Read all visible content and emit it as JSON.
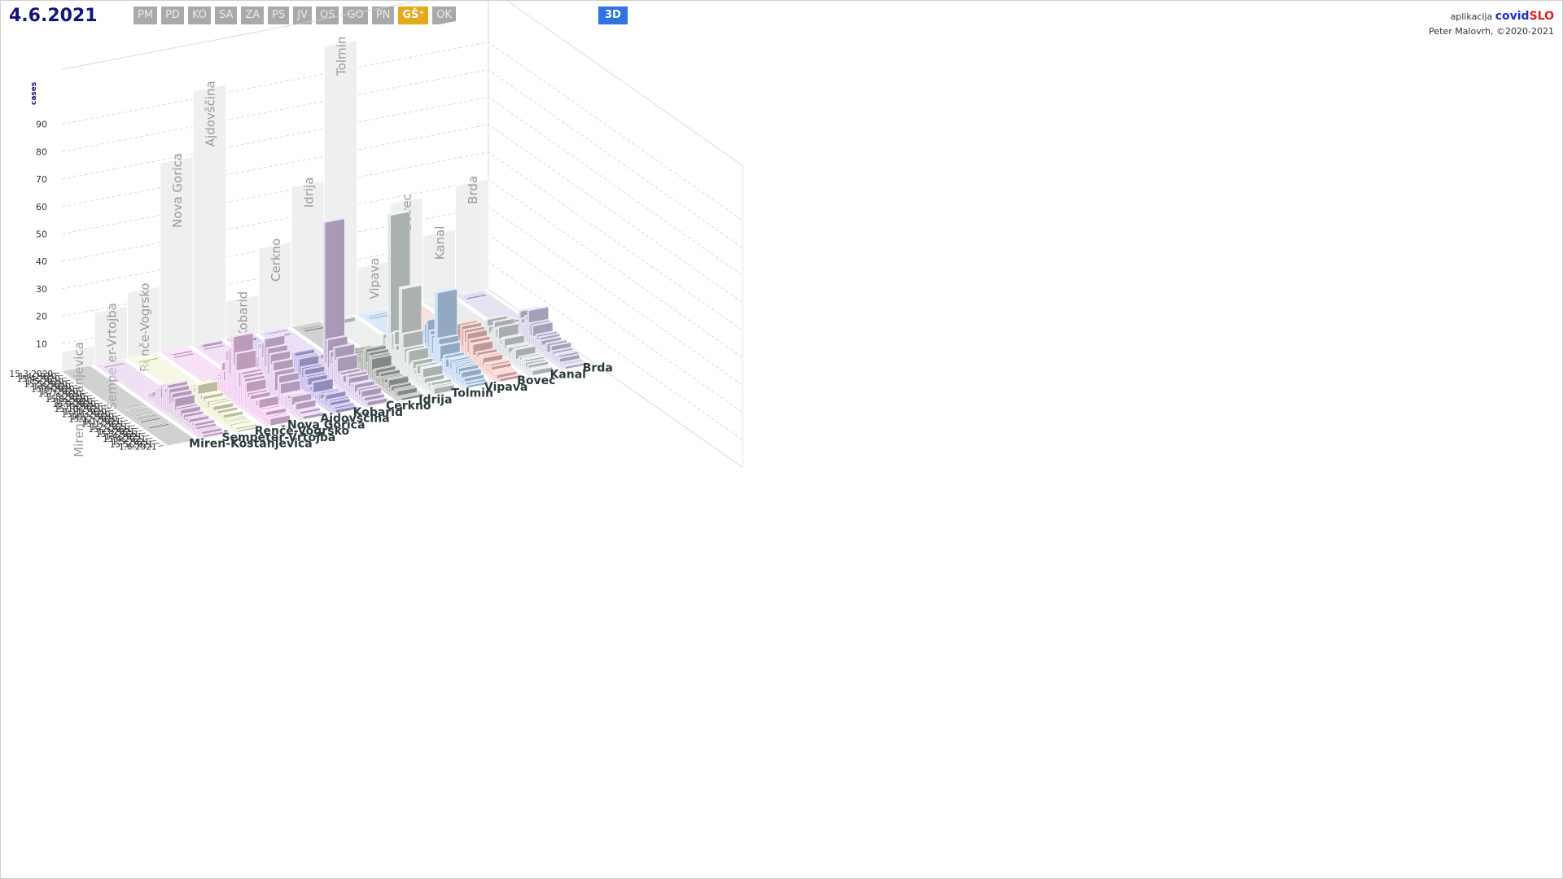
{
  "header": {
    "date": "4.6.2021",
    "tabs": [
      {
        "label": "PM",
        "active": false
      },
      {
        "label": "PD",
        "active": false
      },
      {
        "label": "KO",
        "active": false
      },
      {
        "label": "SA",
        "active": false
      },
      {
        "label": "ZA",
        "active": false
      },
      {
        "label": "PS",
        "active": false
      },
      {
        "label": "JV",
        "active": false
      },
      {
        "label": "OS",
        "active": false
      },
      {
        "label": "GO",
        "active": false
      },
      {
        "label": "PN",
        "active": false
      },
      {
        "label": "GŠ⁺",
        "active": true
      },
      {
        "label": "OK",
        "active": false
      }
    ],
    "view_button": "3D"
  },
  "brand": {
    "line1_prefix": "aplikacija",
    "covid": "covid",
    "slo": "SLO",
    "line2": "Peter Malovrh, ©2020-2021"
  },
  "chart_data": {
    "type": "bar",
    "view": "3d",
    "ylabel": "cases",
    "yticks": [
      10,
      20,
      30,
      40,
      50,
      60,
      70,
      80,
      90
    ],
    "date_ticks": [
      "15.3.2020",
      "1.4.2020",
      "15.4.2020",
      "1.5.2020",
      "15.5.2020",
      "1.6.2020",
      "15.6.2020",
      "1.7.2020",
      "15.7.2020",
      "1.8.2020",
      "15.8.2020",
      "1.9.2020",
      "15.9.2020",
      "1.10.2020",
      "15.10.2020",
      "1.11.2020",
      "15.11.2020",
      "1.12.2020",
      "15.12.2020",
      "1.1.2021",
      "15.1.2021",
      "1.2.2021",
      "15.2.2021",
      "1.3.2021",
      "15.3.2021",
      "1.4.2021",
      "15.4.2021",
      "1.5.2021",
      "15.5.2021",
      "1.6.2021"
    ],
    "municipalities": [
      {
        "name": "Miren-Kostanjevica",
        "color": "#a9adab",
        "back_total": 7
      },
      {
        "name": "Šempeter-Vrtojba",
        "color": "#e4c6ea",
        "back_total": 19
      },
      {
        "name": "Renče-Vogrsko",
        "color": "#eef0cf",
        "back_total": 24
      },
      {
        "name": "Nova Gorica",
        "color": "#f2c8f0",
        "back_total": 69
      },
      {
        "name": "Ajdovščina",
        "color": "#e3c8f0",
        "back_total": 93
      },
      {
        "name": "Kobarid",
        "color": "#bdb2ef",
        "back_total": 14
      },
      {
        "name": "Cerkno",
        "color": "#d9c4ea",
        "back_total": 31
      },
      {
        "name": "Idrija",
        "color": "#aab0ab",
        "back_total": 51
      },
      {
        "name": "Tolmin",
        "color": "#dae3df",
        "back_total": 100
      },
      {
        "name": "Vipava",
        "color": "#bcd8f7",
        "back_total": 17
      },
      {
        "name": "Bovec",
        "color": "#f5c4bf",
        "back_total": 38
      },
      {
        "name": "Kanal",
        "color": "#d7dee0",
        "back_total": 24
      },
      {
        "name": "Brda",
        "color": "#d2cdea",
        "back_total": 40
      }
    ],
    "peaks": [
      {
        "municipality": "Tolmin",
        "date": "late Nov 2020",
        "value": 54
      },
      {
        "municipality": "Cerkno",
        "date": "late Nov 2020",
        "value": 56
      },
      {
        "municipality": "Tolmin",
        "date": "early Jan 2021",
        "value": 30
      },
      {
        "municipality": "Vipava",
        "date": "mid Jan 2021",
        "value": 27
      },
      {
        "municipality": "Nova Gorica",
        "date": "mid Dec 2020",
        "value": 23
      }
    ]
  }
}
